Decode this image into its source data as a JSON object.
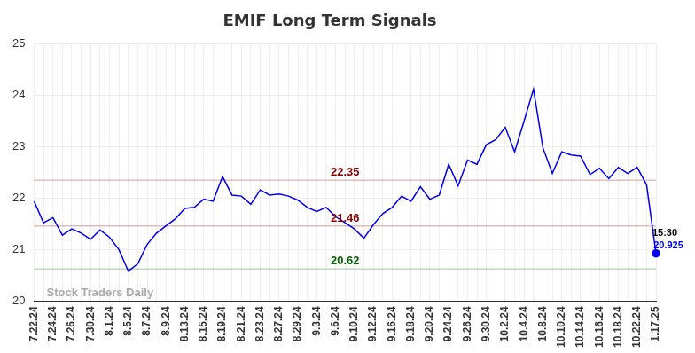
{
  "chart_data": {
    "type": "line",
    "title": "EMIF Long Term Signals",
    "categories": [
      "7.22.24",
      null,
      "7.24.24",
      null,
      "7.26.24",
      null,
      "7.30.24",
      null,
      "8.1.24",
      null,
      "8.5.24",
      null,
      "8.7.24",
      null,
      "8.9.24",
      null,
      "8.13.24",
      null,
      "8.15.24",
      null,
      "8.19.24",
      null,
      "8.21.24",
      null,
      "8.23.24",
      null,
      "8.27.24",
      null,
      "8.29.24",
      null,
      "9.3.24",
      null,
      "9.6.24",
      null,
      "9.10.24",
      null,
      "9.12.24",
      null,
      "9.16.24",
      null,
      "9.18.24",
      null,
      "9.20.24",
      null,
      "9.24.24",
      null,
      "9.26.24",
      null,
      "9.30.24",
      null,
      "10.2.24",
      null,
      "10.4.24",
      null,
      "10.8.24",
      null,
      "10.10.24",
      null,
      "10.14.24",
      null,
      "10.16.24",
      null,
      "10.18.24",
      null,
      "10.22.24",
      null,
      "1.17.25"
    ],
    "values": [
      21.94,
      21.52,
      21.62,
      21.28,
      21.4,
      21.32,
      21.2,
      21.38,
      21.24,
      21.0,
      20.58,
      20.72,
      21.1,
      21.32,
      21.46,
      21.6,
      21.8,
      21.82,
      21.98,
      21.94,
      22.42,
      22.06,
      22.04,
      21.88,
      22.16,
      22.06,
      22.08,
      22.04,
      21.96,
      21.82,
      21.74,
      21.82,
      21.64,
      21.52,
      21.4,
      21.22,
      21.48,
      21.7,
      21.82,
      22.04,
      21.94,
      22.22,
      21.98,
      22.06,
      22.66,
      22.24,
      22.74,
      22.66,
      23.04,
      23.14,
      23.38,
      22.9,
      23.5,
      24.12,
      22.98,
      22.48,
      22.9,
      22.84,
      22.82,
      22.46,
      22.58,
      22.38,
      22.6,
      22.48,
      22.6,
      22.26,
      20.925
    ],
    "color": "#0000ee",
    "ylim": [
      20,
      25
    ],
    "yticks": [
      20,
      21,
      22,
      23,
      24,
      25
    ],
    "grid": true,
    "signal_lines": [
      {
        "value": 22.35,
        "color": "#8b0000"
      },
      {
        "value": 21.46,
        "color": "#8b0000"
      },
      {
        "value": 20.62,
        "color": "#006400"
      }
    ],
    "last_point_note": "15:30",
    "watermark": "Stock Traders Daily"
  }
}
